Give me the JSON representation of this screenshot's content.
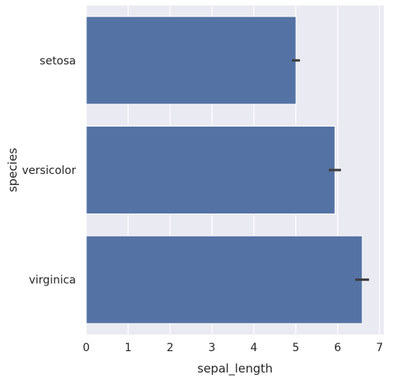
{
  "chart_data": {
    "type": "bar",
    "orientation": "horizontal",
    "title": "",
    "xlabel": "sepal_length",
    "ylabel": "species",
    "categories": [
      "setosa",
      "versicolor",
      "virginica"
    ],
    "values": [
      5.006,
      5.936,
      6.588
    ],
    "error_low": [
      4.91,
      5.79,
      6.42
    ],
    "error_high": [
      5.1,
      6.08,
      6.75
    ],
    "xlim": [
      0,
      7.1
    ],
    "xticks": [
      0,
      1,
      2,
      3,
      4,
      5,
      6,
      7
    ],
    "xtick_labels": [
      "0",
      "1",
      "2",
      "3",
      "4",
      "5",
      "6",
      "7"
    ],
    "grid": true,
    "colors": {
      "bar": "#5572a4",
      "plot_background": "#eaeaf2",
      "grid": "#ffffff",
      "errorbar": "#3d3d3d"
    }
  }
}
